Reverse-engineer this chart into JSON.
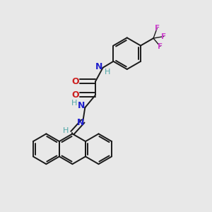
{
  "background_color": "#e8e8e8",
  "bond_color": "#1a1a1a",
  "N_color": "#2020cc",
  "O_color": "#cc2020",
  "F_color": "#cc44cc",
  "H_color": "#4fa8a8",
  "figsize": [
    3.0,
    3.0
  ],
  "dpi": 100,
  "xlim": [
    0,
    10
  ],
  "ylim": [
    0,
    10
  ]
}
